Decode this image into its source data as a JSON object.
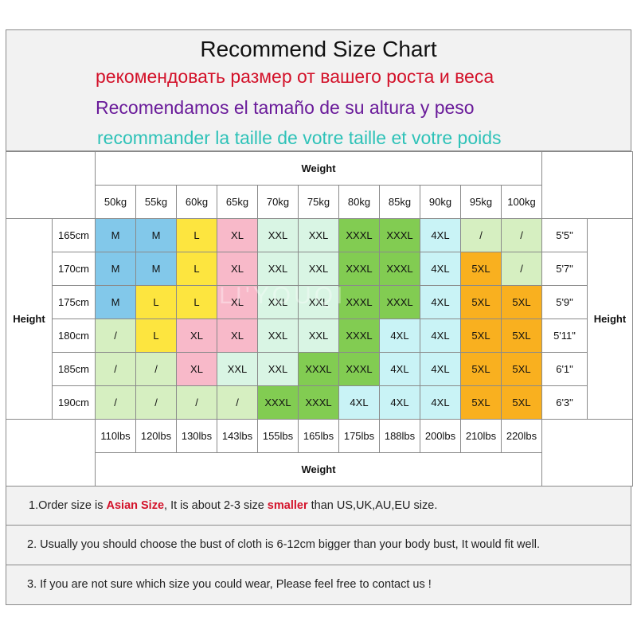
{
  "header": {
    "title": "Recommend Size Chart",
    "subtitle_ru": "рекомендовать размер от вашего роста и веса",
    "subtitle_es": "Recomendamos el tamaño de su altura y peso",
    "subtitle_fr": "recommander la taille de votre taille et votre poids"
  },
  "table": {
    "weight_label": "Weight",
    "height_label": "Height",
    "weights_kg": [
      "50kg",
      "55kg",
      "60kg",
      "65kg",
      "70kg",
      "75kg",
      "80kg",
      "85kg",
      "90kg",
      "95kg",
      "100kg"
    ],
    "weights_lbs": [
      "110lbs",
      "120lbs",
      "130lbs",
      "143lbs",
      "155lbs",
      "165lbs",
      "175lbs",
      "188lbs",
      "200lbs",
      "210lbs",
      "220lbs"
    ],
    "rows": [
      {
        "cm": "165cm",
        "ft": "5'5\"",
        "sizes": [
          "M",
          "M",
          "L",
          "XL",
          "XXL",
          "XXL",
          "XXXL",
          "XXXL",
          "4XL",
          "/",
          "/"
        ]
      },
      {
        "cm": "170cm",
        "ft": "5'7\"",
        "sizes": [
          "M",
          "M",
          "L",
          "XL",
          "XXL",
          "XXL",
          "XXXL",
          "XXXL",
          "4XL",
          "5XL",
          "/"
        ]
      },
      {
        "cm": "175cm",
        "ft": "5'9\"",
        "sizes": [
          "M",
          "L",
          "L",
          "XL",
          "XXL",
          "XXL",
          "XXXL",
          "XXXL",
          "4XL",
          "5XL",
          "5XL"
        ]
      },
      {
        "cm": "180cm",
        "ft": "5'11\"",
        "sizes": [
          "/",
          "L",
          "XL",
          "XL",
          "XXL",
          "XXL",
          "XXXL",
          "4XL",
          "4XL",
          "5XL",
          "5XL"
        ]
      },
      {
        "cm": "185cm",
        "ft": "6'1\"",
        "sizes": [
          "/",
          "/",
          "XL",
          "XXL",
          "XXL",
          "XXXL",
          "XXXL",
          "4XL",
          "4XL",
          "5XL",
          "5XL"
        ]
      },
      {
        "cm": "190cm",
        "ft": "6'3\"",
        "sizes": [
          "/",
          "/",
          "/",
          "/",
          "XXXL",
          "XXXL",
          "4XL",
          "4XL",
          "4XL",
          "5XL",
          "5XL"
        ]
      }
    ],
    "size_colors": {
      "M": "#82c8ea",
      "L": "#fde53f",
      "XL": "#f8b9c9",
      "XXL": "#d9f5e4",
      "XXXL": "#82cc52",
      "4XL": "#c9f3f6",
      "5XL": "#f9b01f",
      "/": "#d6efc1"
    },
    "watermark": "LI'YOUQI"
  },
  "notes": {
    "n1_a": "1.Order size is ",
    "n1_b": "Asian Size",
    "n1_c": ", It is about 2-3 size ",
    "n1_d": "smaller",
    "n1_e": " than US,UK,AU,EU size.",
    "n2": "2. Usually you should choose the bust of cloth is 6-12cm bigger than your body bust, It would fit well.",
    "n3": "3. If you are not sure which size you could wear, Please feel free to contact us !"
  }
}
